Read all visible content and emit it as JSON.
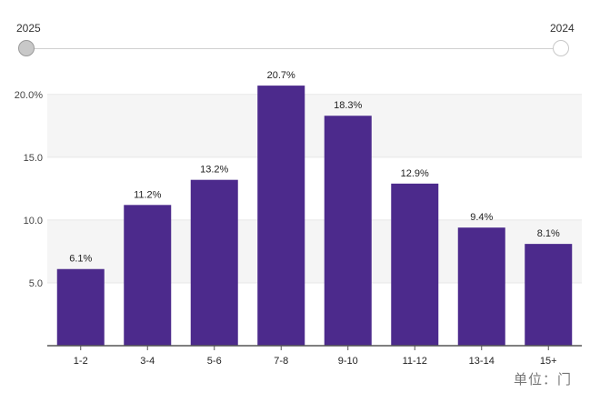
{
  "slider": {
    "left_label": "2025",
    "right_label": "2024"
  },
  "unit_label": "单位：门",
  "colors": {
    "bar": "#4c2a8c",
    "axis": "#555555",
    "grid": "#e8e8e8",
    "band": "#f5f5f5"
  },
  "chart_data": {
    "type": "bar",
    "categories": [
      "1-2",
      "3-4",
      "5-6",
      "7-8",
      "9-10",
      "11-12",
      "13-14",
      "15+"
    ],
    "values": [
      6.1,
      11.2,
      13.2,
      20.7,
      18.3,
      12.9,
      9.4,
      8.1
    ],
    "data_labels": [
      "6.1%",
      "11.2%",
      "13.2%",
      "20.7%",
      "18.3%",
      "12.9%",
      "9.4%",
      "8.1%"
    ],
    "yticks": [
      5,
      10,
      15,
      20
    ],
    "ytick_labels": [
      "5.0",
      "10.0",
      "15.0",
      "20.0%"
    ],
    "ylim": [
      0,
      22.3
    ],
    "title": "",
    "xlabel": "",
    "ylabel": "",
    "grid": true,
    "legend": "none"
  }
}
